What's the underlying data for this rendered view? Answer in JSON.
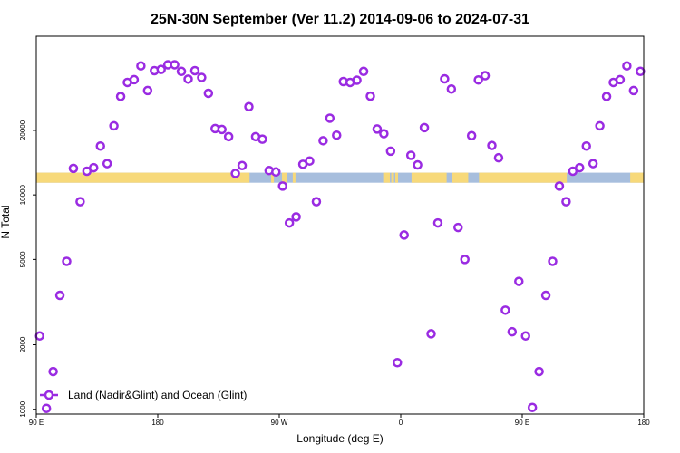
{
  "chart_data": {
    "type": "scatter",
    "title": "25N-30N September (Ver 11.2)   2014-09-06 to 2024-07-31",
    "xlabel": "Longitude (deg E)",
    "ylabel": "N Total",
    "x_tick_values": [
      90,
      180,
      270,
      360,
      450,
      540
    ],
    "x_tick_labels": [
      "90 E",
      "180",
      "90 W",
      "0",
      "90 E",
      "180"
    ],
    "y_scale": "log",
    "y_tick_values": [
      1000,
      2000,
      5000,
      10000,
      20000
    ],
    "y_tick_labels": [
      "1000",
      "2000",
      "5000",
      "10000",
      "20000"
    ],
    "xlim": [
      90,
      540
    ],
    "ylim": [
      950,
      55000
    ],
    "legend": {
      "label": "Land (Nadir&Glint) and Ocean (Glint)",
      "position": "bottom-left"
    },
    "colors": {
      "points": "#9a2be2",
      "land": "#f7d97a",
      "ocean": "#a7bedd"
    },
    "surface_band": {
      "y_range": [
        11400,
        12700
      ],
      "land_segments": [
        [
          90,
          248
        ],
        [
          264,
          266
        ],
        [
          272,
          276
        ],
        [
          280,
          282
        ],
        [
          347,
          352
        ],
        [
          353,
          355
        ],
        [
          356,
          358
        ],
        [
          368,
          394
        ],
        [
          398,
          410
        ],
        [
          418,
          483
        ],
        [
          530,
          540
        ]
      ]
    },
    "series": [
      {
        "name": "Land (Nadir&Glint) and Ocean (Glint)",
        "x": [
          92.5,
          97.5,
          102.5,
          107.5,
          112.5,
          117.5,
          122.5,
          127.5,
          132.5,
          137.5,
          142.5,
          147.5,
          152.5,
          157.5,
          162.5,
          167.5,
          172.5,
          177.5,
          182.5,
          187.5,
          192.5,
          197.5,
          202.5,
          207.5,
          212.5,
          217.5,
          222.5,
          227.5,
          232.5,
          237.5,
          242.5,
          247.5,
          252.5,
          257.5,
          262.5,
          267.5,
          272.5,
          277.5,
          282.5,
          287.5,
          292.5,
          297.5,
          302.5,
          307.5,
          312.5,
          317.5,
          322.5,
          327.5,
          332.5,
          337.5,
          342.5,
          347.5,
          352.5,
          357.5,
          362.5,
          367.5,
          372.5,
          377.5,
          382.5,
          387.5,
          392.5,
          397.5,
          402.5,
          407.5,
          412.5,
          417.5,
          422.5,
          427.5,
          432.5,
          437.5,
          442.5,
          447.5,
          452.5,
          457.5,
          462.5,
          467.5,
          472.5,
          477.5,
          482.5,
          487.5,
          492.5,
          497.5,
          502.5,
          507.5,
          512.5,
          517.5,
          522.5,
          527.5,
          532.5,
          537.5
        ],
        "y": [
          2200,
          1010,
          1500,
          3400,
          4900,
          13300,
          9300,
          12900,
          13400,
          16900,
          14000,
          21000,
          28800,
          33500,
          34500,
          40000,
          30700,
          38000,
          38500,
          40500,
          40500,
          37700,
          34700,
          38000,
          35300,
          29800,
          20400,
          20200,
          18700,
          12600,
          13700,
          25800,
          18700,
          18200,
          13000,
          12800,
          11000,
          7400,
          7900,
          13900,
          14400,
          9300,
          17900,
          22800,
          19000,
          33800,
          33500,
          34300,
          37700,
          28900,
          20300,
          19300,
          16000,
          1650,
          6500,
          15300,
          13800,
          20600,
          2250,
          7400,
          34800,
          31200,
          7050,
          5000,
          18900,
          34400,
          36000,
          17000,
          14900,
          2900,
          2300,
          3950,
          2200,
          1020,
          1500,
          3400,
          4900,
          11000,
          9300,
          12900,
          13400,
          16900,
          14000,
          21000,
          28800,
          33500,
          34500,
          40000,
          30700,
          37700
        ]
      }
    ]
  }
}
